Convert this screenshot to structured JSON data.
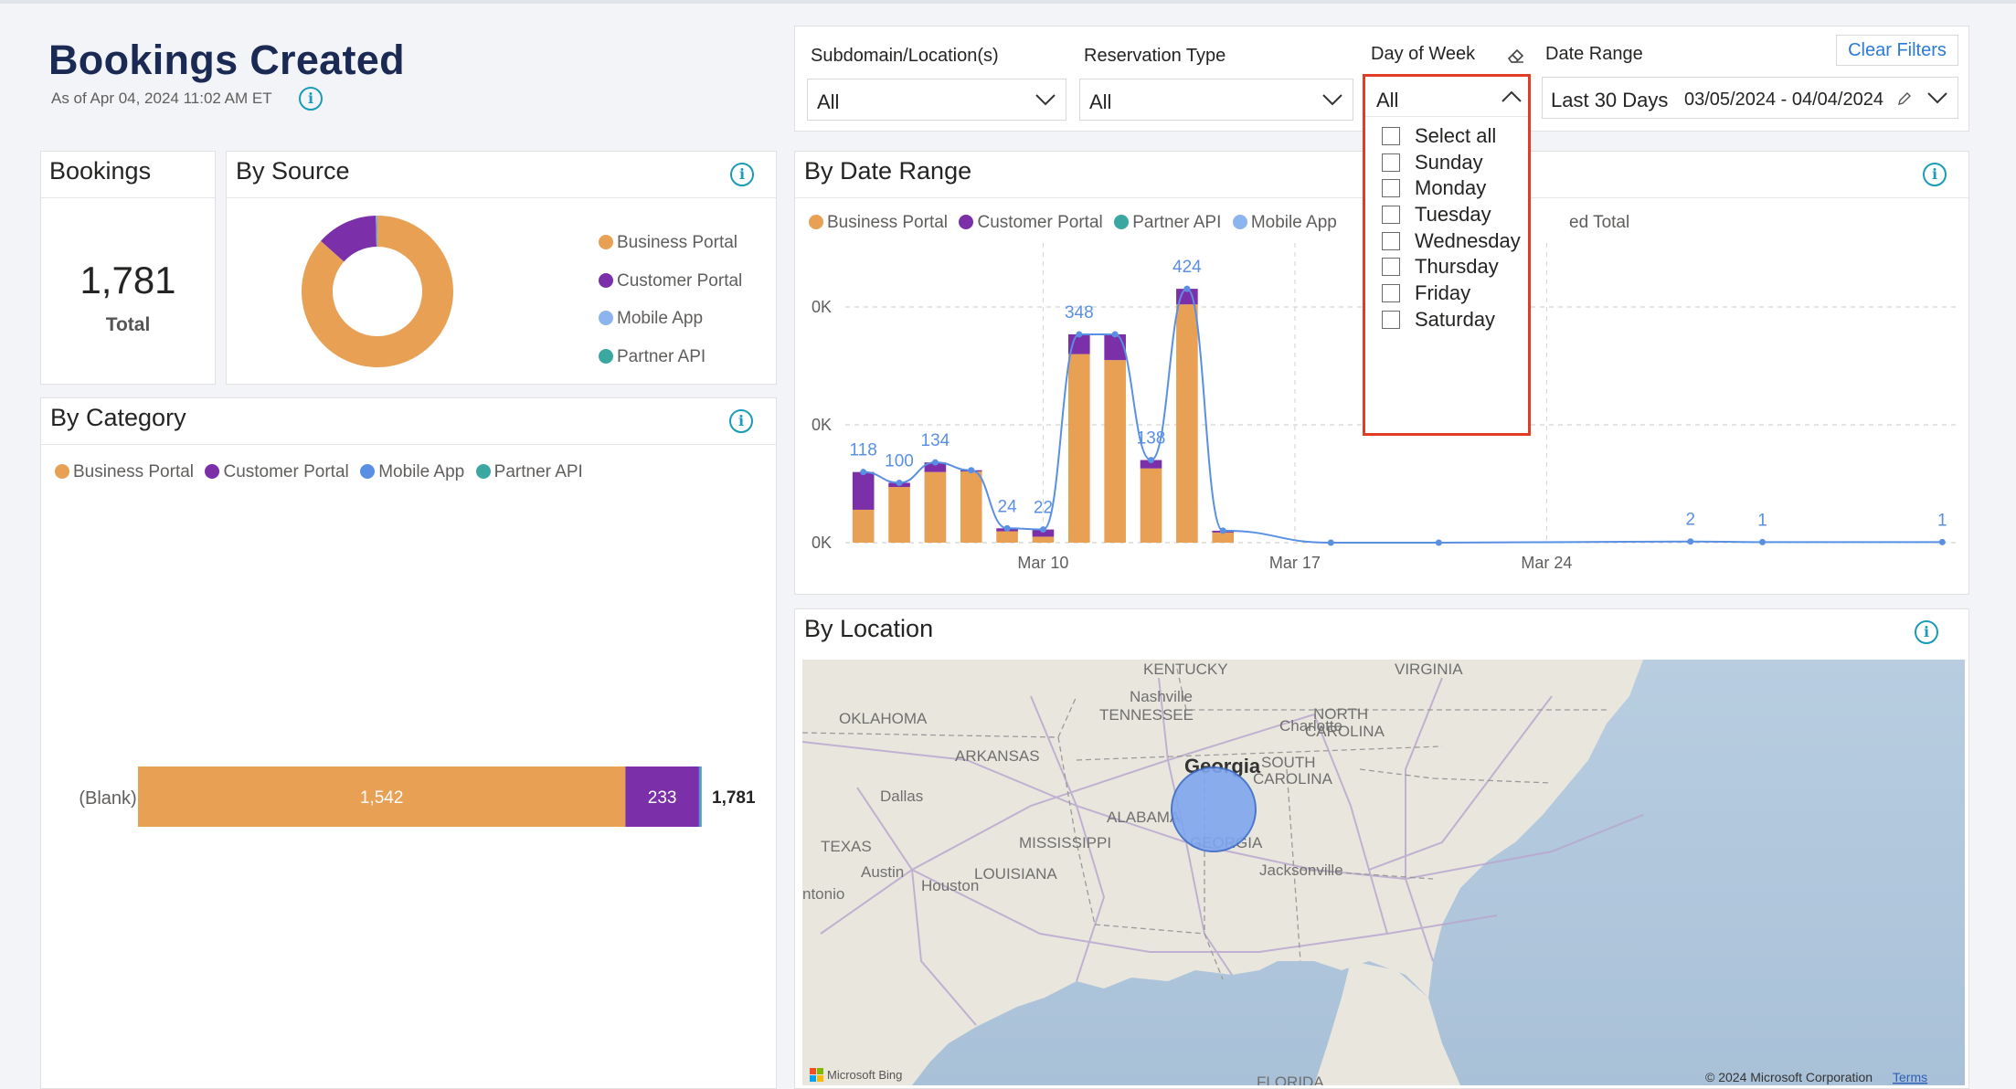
{
  "header": {
    "title": "Bookings Created",
    "as_of": "As of Apr 04, 2024 11:02 AM ET"
  },
  "filters": {
    "subdomain": {
      "label": "Subdomain/Location(s)",
      "value": "All"
    },
    "reservation_type": {
      "label": "Reservation Type",
      "value": "All"
    },
    "day_of_week": {
      "label": "Day of Week",
      "value": "All",
      "options": [
        "Select all",
        "Sunday",
        "Monday",
        "Tuesday",
        "Wednesday",
        "Thursday",
        "Friday",
        "Saturday"
      ]
    },
    "date_range": {
      "label": "Date Range",
      "preset": "Last 30 Days",
      "range": "03/05/2024 - 04/04/2024"
    },
    "clear_label": "Clear Filters"
  },
  "colors": {
    "business_portal": "#e8a055",
    "customer_portal": "#7b2fa8",
    "mobile_app": "#8cb4ee",
    "partner_api": "#3aa8a0",
    "total_line": "#5a90e3",
    "accent_blue": "#2b7bd6",
    "highlight": "#e23b26"
  },
  "bookings_card": {
    "title": "Bookings",
    "value": "1,781",
    "caption": "Total"
  },
  "by_source": {
    "title": "By Source",
    "legend": [
      "Business Portal",
      "Customer Portal",
      "Mobile App",
      "Partner API"
    ],
    "chart_data": {
      "type": "pie",
      "labels": [
        "Business Portal",
        "Customer Portal",
        "Mobile App",
        "Partner API"
      ],
      "values": [
        1542,
        233,
        4,
        2
      ]
    }
  },
  "by_category": {
    "title": "By Category",
    "legend": [
      "Business Portal",
      "Customer Portal",
      "Mobile App",
      "Partner API"
    ],
    "chart_data": {
      "type": "bar",
      "orientation": "horizontal",
      "stacked": true,
      "categories": [
        "(Blank)"
      ],
      "series": [
        {
          "name": "Business Portal",
          "values": [
            1542
          ]
        },
        {
          "name": "Customer Portal",
          "values": [
            233
          ]
        },
        {
          "name": "Mobile App",
          "values": [
            4
          ]
        },
        {
          "name": "Partner API",
          "values": [
            2
          ]
        }
      ],
      "data_labels": [
        "1,542",
        "233"
      ],
      "totals": [
        "1,781"
      ]
    }
  },
  "by_date_range": {
    "title": "By Date Range",
    "legend": [
      "Business Portal",
      "Customer Portal",
      "Partner API",
      "Mobile App",
      "ed Total"
    ],
    "chart_data": {
      "type": "bar",
      "stacked": true,
      "x": [
        "Mar 5",
        "Mar 6",
        "Mar 7",
        "Mar 8",
        "Mar 9",
        "Mar 10",
        "Mar 11",
        "Mar 12",
        "Mar 13",
        "Mar 14",
        "Mar 15",
        "Mar 16",
        "Mar 17",
        "Mar 18",
        "Mar 19",
        "Mar 20",
        "Mar 21",
        "Mar 22",
        "Mar 23",
        "Mar 24",
        "Mar 25",
        "Mar 26",
        "Mar 27",
        "Mar 28",
        "Mar 29",
        "Mar 30",
        "Mar 31",
        "Apr 1",
        "Apr 2",
        "Apr 3",
        "Apr 4"
      ],
      "x_ticks": [
        "Mar 10",
        "Mar 17",
        "Mar 24"
      ],
      "y_ticks": [
        "0K",
        "0K",
        "0K"
      ],
      "series": [
        {
          "name": "Business Portal",
          "values": [
            55,
            93,
            118,
            119,
            19,
            10,
            315,
            305,
            124,
            398,
            17,
            0,
            0,
            0,
            0,
            0,
            0,
            0,
            0,
            0,
            0,
            0,
            0,
            0,
            0,
            0,
            0,
            0,
            0,
            0,
            0
          ]
        },
        {
          "name": "Customer Portal",
          "values": [
            63,
            7,
            16,
            2,
            5,
            12,
            33,
            43,
            14,
            26,
            3,
            0,
            0,
            0,
            0,
            0,
            0,
            0,
            0,
            0,
            0,
            0,
            0,
            0,
            0,
            0,
            0,
            0,
            0,
            0,
            0
          ]
        }
      ],
      "total_line": [
        118,
        100,
        134,
        121,
        24,
        22,
        348,
        348,
        138,
        424,
        20,
        null,
        null,
        0,
        null,
        null,
        0,
        null,
        null,
        null,
        null,
        null,
        null,
        2,
        null,
        1,
        null,
        null,
        null,
        null,
        1
      ],
      "data_labels": [
        {
          "x": "Mar 5",
          "label": "118"
        },
        {
          "x": "Mar 6",
          "label": "100"
        },
        {
          "x": "Mar 7",
          "label": "134"
        },
        {
          "x": "Mar 9",
          "label": "24"
        },
        {
          "x": "Mar 10",
          "label": "22"
        },
        {
          "x": "Mar 11",
          "label": "348"
        },
        {
          "x": "Mar 13",
          "label": "138"
        },
        {
          "x": "Mar 14",
          "label": "424"
        },
        {
          "x": "Mar 28",
          "label": "2"
        },
        {
          "x": "Mar 30",
          "label": "1"
        },
        {
          "x": "Apr 4",
          "label": "1"
        }
      ],
      "ylim": [
        0,
        470
      ],
      "grid": true
    }
  },
  "by_location": {
    "title": "By Location",
    "map_labels": {
      "states": [
        "KENTUCKY",
        "VIRGINIA",
        "OKLAHOMA",
        "TENNESSEE",
        "NORTH CAROLINA",
        "ARKANSAS",
        "SOUTH CAROLINA",
        "ALABAMA",
        "MISSISSIPPI",
        "GEORGIA",
        "TEXAS",
        "LOUISIANA",
        "FLORIDA"
      ],
      "cities": [
        "Nashville",
        "Charlotte",
        "Dallas",
        "Austin",
        "Houston",
        "ntonio",
        "Jacksonville"
      ],
      "highlight": "Georgia"
    },
    "attribution": "© 2024 Microsoft Corporation",
    "terms": "Terms",
    "brand": "Microsoft Bing"
  }
}
